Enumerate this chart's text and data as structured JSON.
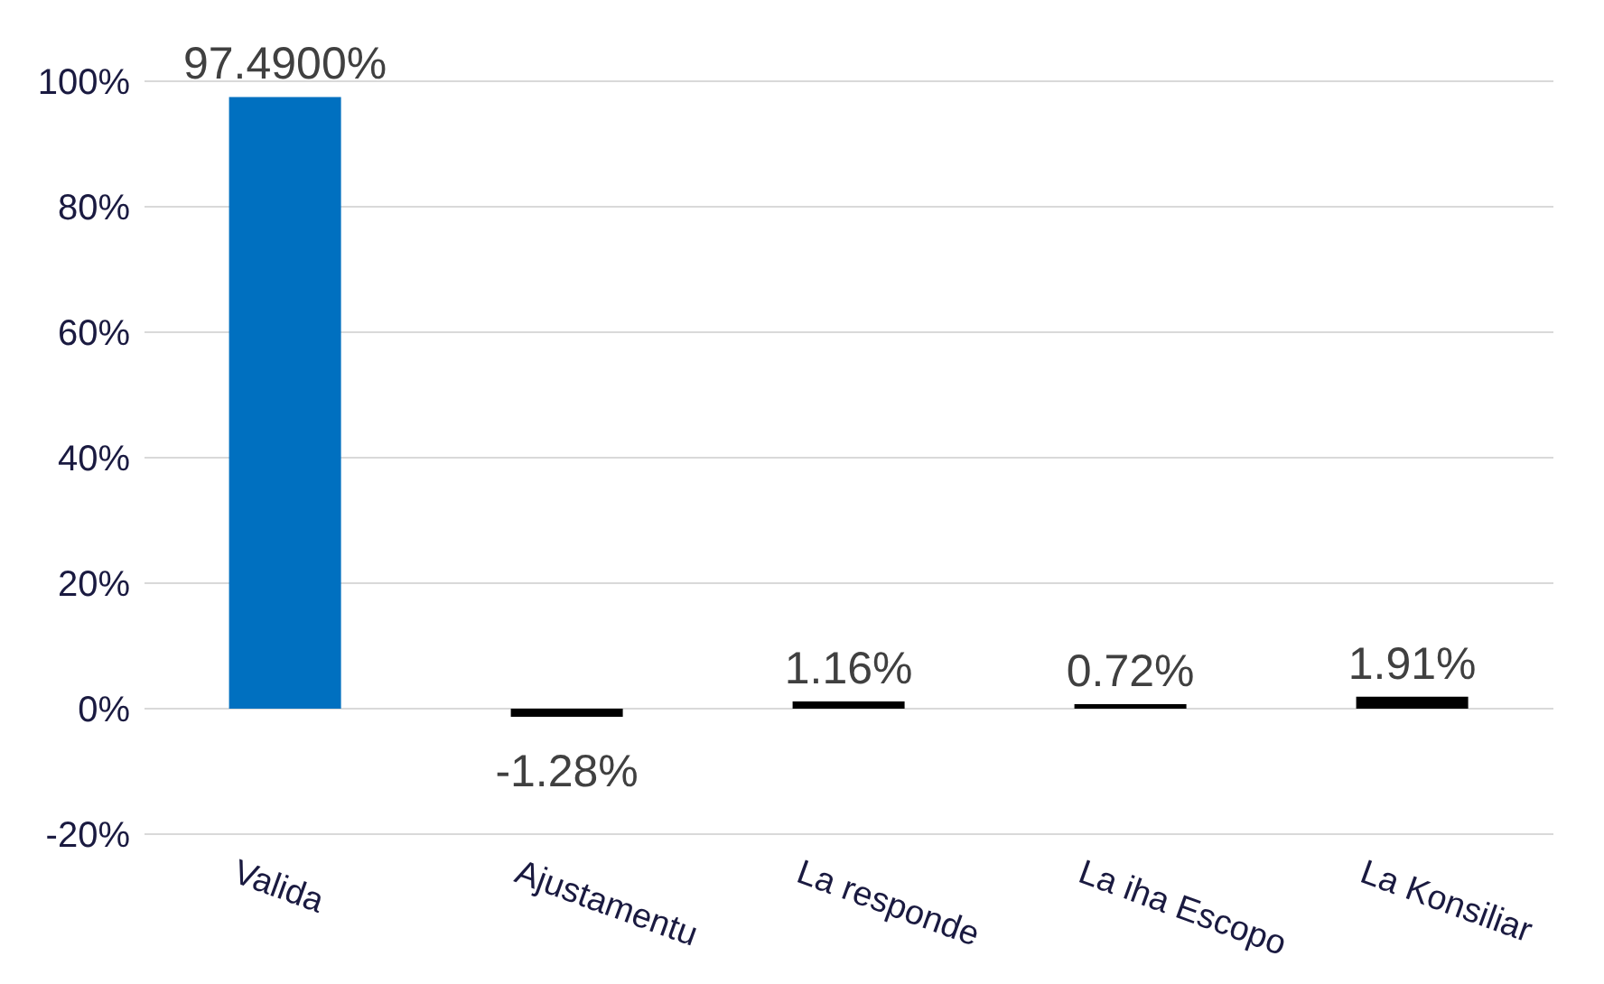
{
  "chart_data": {
    "type": "bar",
    "categories": [
      "Valida",
      "Ajustamentu",
      "La responde",
      "La iha Escopo",
      "La Konsiliar"
    ],
    "values": [
      97.49,
      -1.28,
      1.16,
      0.72,
      1.91
    ],
    "colors": [
      "#0070c0",
      "#000000",
      "#000000",
      "#000000",
      "#000000"
    ],
    "value_labels": [
      "97.4900%",
      "-1.28%",
      "1.16%",
      "0.72%",
      "1.91%"
    ],
    "ylim": [
      -20,
      100
    ],
    "yticks": [
      {
        "value": -20,
        "label": "-20%"
      },
      {
        "value": 0,
        "label": "0%"
      },
      {
        "value": 20,
        "label": "20%"
      },
      {
        "value": 40,
        "label": "40%"
      },
      {
        "value": 60,
        "label": "60%"
      },
      {
        "value": 80,
        "label": "80%"
      },
      {
        "value": 100,
        "label": "100%"
      }
    ],
    "grid": "y"
  }
}
